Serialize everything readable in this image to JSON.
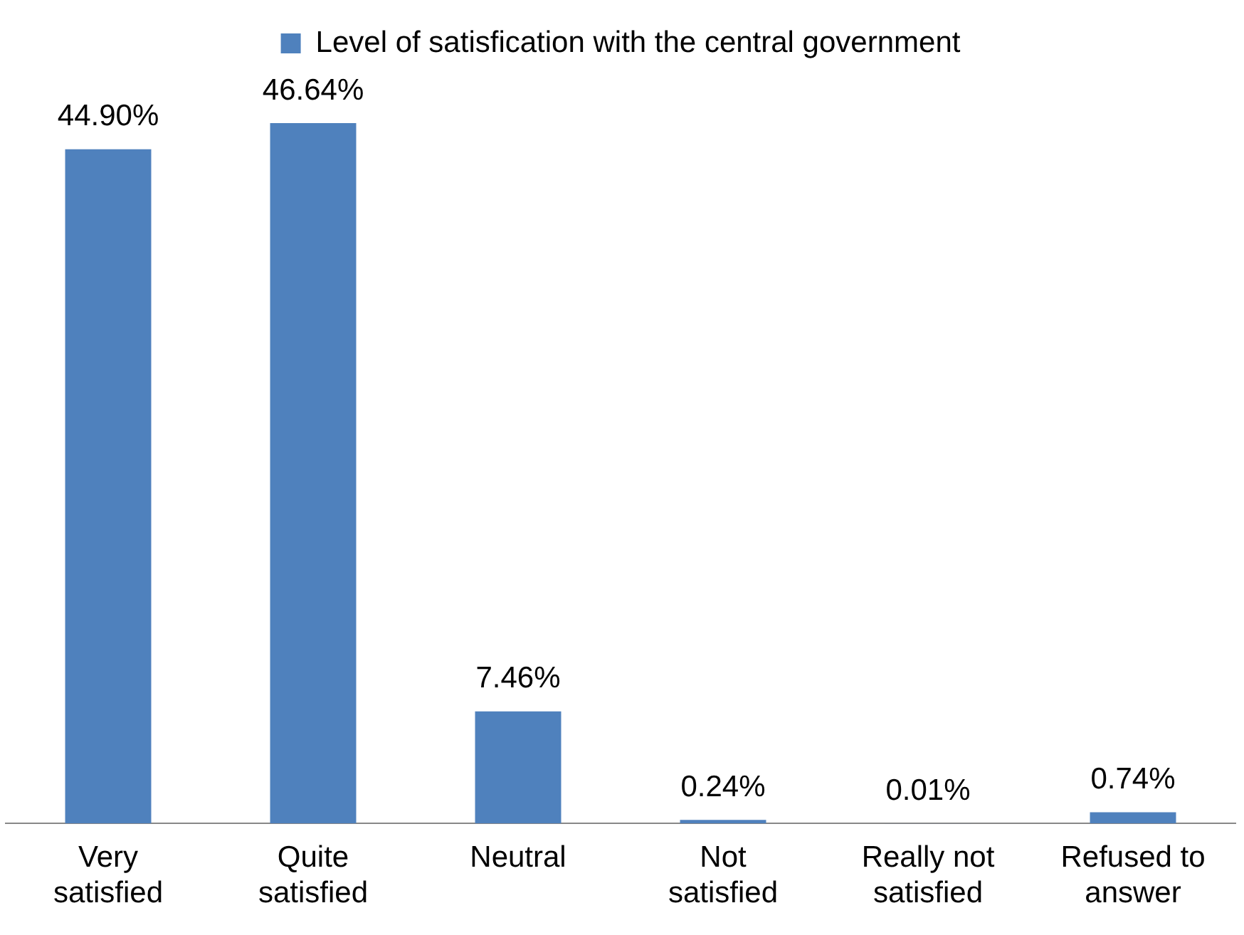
{
  "chart_data": {
    "type": "bar",
    "categories": [
      "Very satisfied",
      "Quite satisfied",
      "Neutral",
      "Not satisfied",
      "Really not satisfied",
      "Refused to answer"
    ],
    "series": [
      {
        "name": "Level of satisfication with the central government",
        "color": "#4f81bd",
        "values": [
          44.9,
          46.64,
          7.46,
          0.24,
          0.01,
          0.74
        ],
        "value_labels": [
          "44.90%",
          "46.64%",
          "7.46%",
          "0.24%",
          "0.01%",
          "0.74%"
        ]
      }
    ],
    "legend": "top",
    "grid": false
  }
}
